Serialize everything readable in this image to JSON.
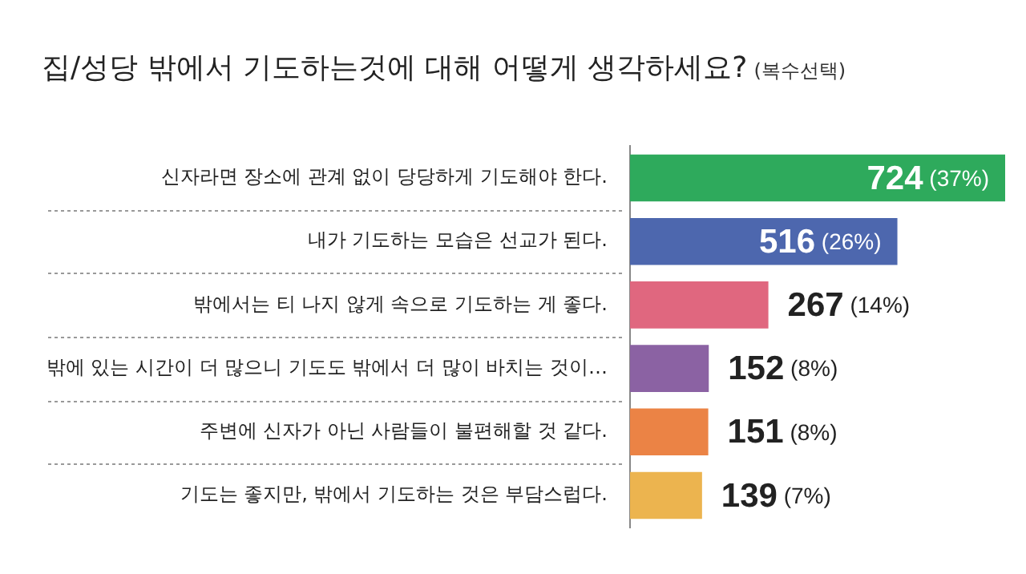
{
  "chart_data": {
    "type": "bar",
    "orientation": "horizontal",
    "title": "집/성당 밖에서 기도하는것에 대해 어떻게 생각하세요?",
    "subtitle": "(복수선택)",
    "categories": [
      "신자라면 장소에 관계 없이 당당하게 기도해야 한다.",
      "내가 기도하는 모습은 선교가 된다.",
      "밖에서는 티 나지 않게 속으로 기도하는 게 좋다.",
      "밖에 있는 시간이 더 많으니 기도도 밖에서 더 많이 바치는 것이…",
      "주변에 신자가 아닌 사람들이 불편해할 것 같다.",
      "기도는 좋지만, 밖에서 기도하는 것은 부담스럽다."
    ],
    "values": [
      724,
      516,
      267,
      152,
      151,
      139
    ],
    "colors": [
      "#2eaa5c",
      "#4d67ae",
      "#e0677f",
      "#8b62a3",
      "#eb8345",
      "#ecb44f"
    ],
    "value_labels": [
      "724 (37%)",
      "516 (26%)",
      "267 (14%)",
      "152 (8%)",
      "151 (8%)",
      "139 (7%)"
    ]
  }
}
